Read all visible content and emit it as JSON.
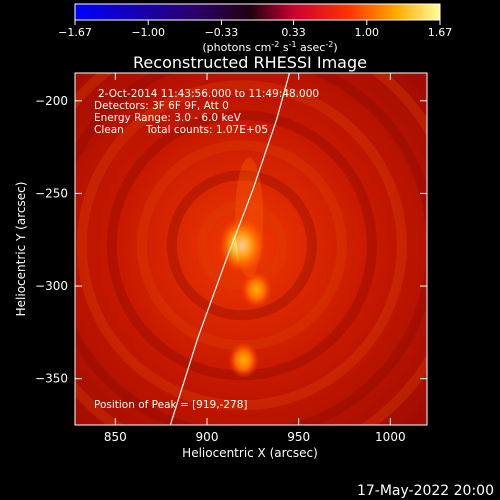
{
  "chart_data": {
    "type": "heatmap",
    "title": "Reconstructed RHESSI Image",
    "xlabel": "Heliocentric X (arcsec)",
    "ylabel": "Heliocentric Y (arcsec)",
    "xlim": [
      828,
      1020
    ],
    "ylim": [
      -375,
      -185
    ],
    "xticks": [
      850,
      900,
      950,
      1000
    ],
    "yticks": [
      -200,
      -250,
      -300,
      -350
    ],
    "colorbar": {
      "range": [
        -1.67,
        1.67
      ],
      "tick_labels": [
        "-1.67",
        "-1.00",
        "-0.33",
        "0.33",
        "1.00",
        "1.67"
      ],
      "label_prefix": "(photons cm",
      "label_sup1": "-2",
      "label_mid": " s",
      "label_sup2": "-1",
      "label_mid2": " asec",
      "label_sup3": "-2",
      "label_suffix": ")"
    },
    "annotations": {
      "time_range": "2-Oct-2014 11:43:56.000 to 11:49:48.000",
      "detectors": "Detectors: 3F 6F 9F, Att 0",
      "energy": "Energy Range: 3.0 - 6.0 keV",
      "method": "Clean",
      "counts": "Total counts: 1.07E+05",
      "peak": "Position of Peak = [919,-278]"
    },
    "sources": [
      {
        "x": 919,
        "y": -278,
        "peak": 1.67
      },
      {
        "x": 920,
        "y": -340,
        "peak": 0.95
      },
      {
        "x": 927,
        "y": -302,
        "peak": 0.85
      }
    ],
    "peak_position": [
      919,
      -278
    ],
    "limb_curve": [
      [
        880,
        -375
      ],
      [
        895,
        -328
      ],
      [
        910,
        -287
      ],
      [
        925,
        -248
      ],
      [
        938,
        -210
      ],
      [
        945,
        -185
      ]
    ]
  },
  "footer": {
    "date": "17-May-2022 20:00"
  }
}
